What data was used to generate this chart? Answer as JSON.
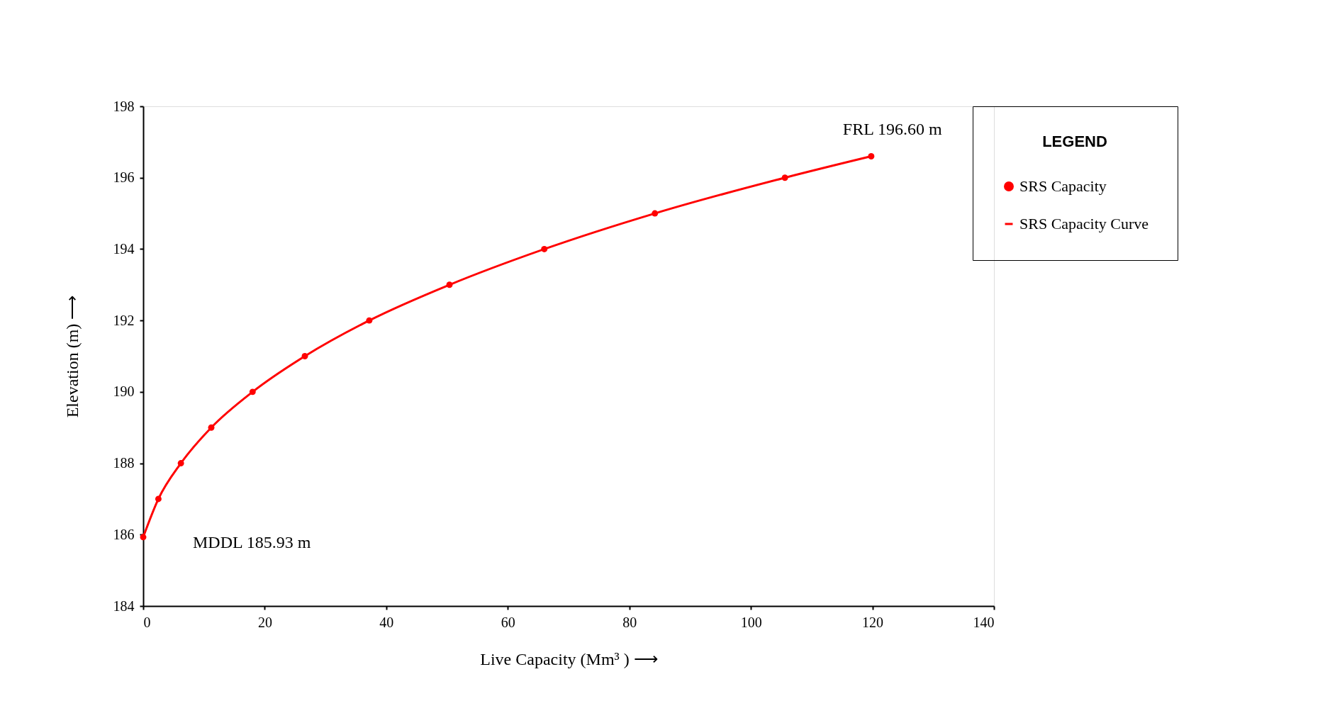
{
  "chart_data": {
    "type": "scatter",
    "xlabel": "Live Capacity (Mm³ ) ⟶",
    "ylabel": "Elevation  (m)  ⟶",
    "legend_title": "LEGEND",
    "xlim": [
      0,
      140
    ],
    "xticks": [
      0,
      20,
      40,
      60,
      80,
      100,
      120,
      140
    ],
    "ylim": [
      184,
      198
    ],
    "yticks": [
      184,
      186,
      188,
      190,
      192,
      194,
      196,
      198
    ],
    "grid": false,
    "legend": "right",
    "series": [
      {
        "name": "SRS Capacity",
        "marker": "circle",
        "color": "#ff0000",
        "x": [
          0,
          2.5,
          6.2,
          11.2,
          18,
          26.6,
          37.2,
          50.4,
          66,
          84.2,
          105.6,
          119.8
        ],
        "values": [
          185.93,
          187,
          188,
          189,
          190,
          191,
          192,
          193,
          194,
          195,
          196,
          196.6
        ]
      },
      {
        "name": "SRS Capacity Curve",
        "type": "line",
        "line_style": "solid",
        "color": "#ff0000",
        "x": [
          0,
          2.5,
          6.2,
          11.2,
          18,
          26.6,
          37.2,
          50.4,
          66,
          84.2,
          105.6,
          119.8
        ],
        "values": [
          185.93,
          187,
          188,
          189,
          190,
          191,
          192,
          193,
          194,
          195,
          196,
          196.6
        ]
      }
    ],
    "annotations": [
      {
        "text": "MDDL  185.93 m",
        "x": 0,
        "y": 185.93
      },
      {
        "text": "FRL  196.60 m",
        "x": 119.8,
        "y": 196.6
      }
    ]
  }
}
